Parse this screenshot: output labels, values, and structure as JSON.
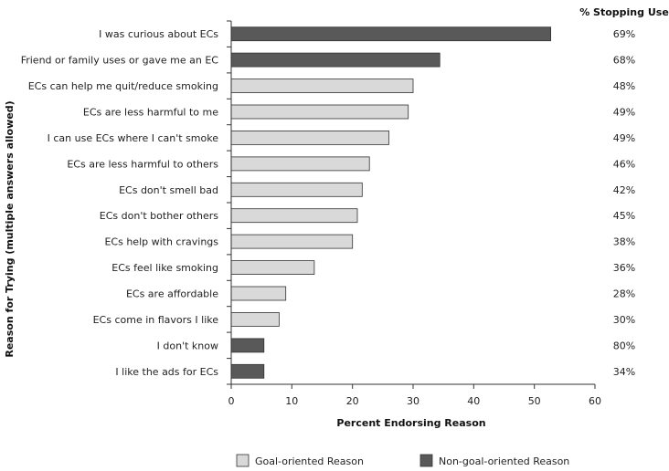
{
  "chart_data": {
    "type": "bar",
    "orientation": "horizontal",
    "categories": [
      "I was curious about ECs",
      "Friend or family uses or gave me an EC",
      "ECs can help me quit/reduce smoking",
      "ECs are less harmful to me",
      "I can use ECs where I can't smoke",
      "ECs are less harmful to others",
      "ECs don't smell bad",
      "ECs don't bother others",
      "ECs help with cravings",
      "ECs feel like smoking",
      "ECs are affordable",
      "ECs come in flavors I like",
      "I don't know",
      "I like the ads for ECs"
    ],
    "values": [
      52.7,
      34.4,
      30.0,
      29.2,
      26.0,
      22.8,
      21.6,
      20.8,
      20.0,
      13.7,
      9.0,
      7.9,
      5.4,
      5.4
    ],
    "groups": [
      "non-goal",
      "non-goal",
      "goal",
      "goal",
      "goal",
      "goal",
      "goal",
      "goal",
      "goal",
      "goal",
      "goal",
      "goal",
      "non-goal",
      "non-goal"
    ],
    "stopping_use_header": "% Stopping Use",
    "stopping_use": [
      "69%",
      "68%",
      "48%",
      "49%",
      "49%",
      "46%",
      "42%",
      "45%",
      "38%",
      "36%",
      "28%",
      "30%",
      "80%",
      "34%"
    ],
    "xlabel": "Percent Endorsing Reason",
    "ylabel": "Reason for Trying (multiple answers allowed)",
    "xlim": [
      0,
      60
    ],
    "xticks": [
      0,
      10,
      20,
      30,
      40,
      50,
      60
    ],
    "legend": {
      "placement": "bottom",
      "items": [
        {
          "key": "goal",
          "label": "Goal-oriented Reason",
          "color": "#d9d9d9"
        },
        {
          "key": "non-goal",
          "label": "Non-goal-oriented Reason",
          "color": "#595959"
        }
      ]
    },
    "grid": false
  }
}
